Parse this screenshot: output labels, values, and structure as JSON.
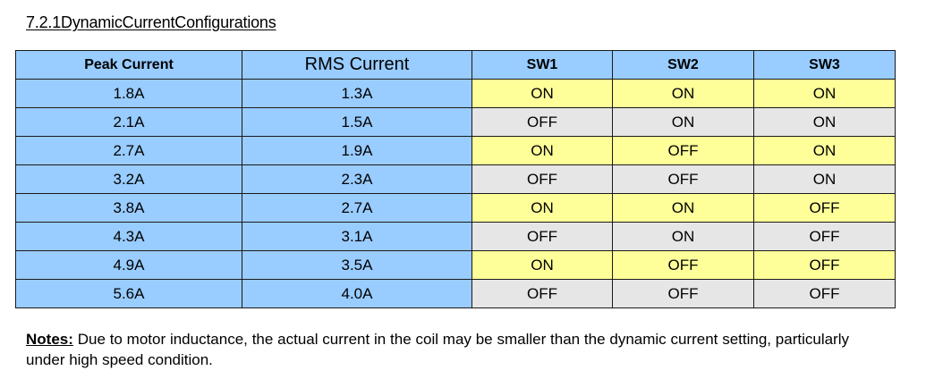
{
  "heading": "7.2.1DynamicCurrentConfigurations",
  "table": {
    "headers": {
      "peak": "Peak Current",
      "rms": "RMS Current",
      "sw1": "SW1",
      "sw2": "SW2",
      "sw3": "SW3"
    },
    "rows": [
      {
        "peak": "1.8A",
        "rms": "1.3A",
        "sw1": "ON",
        "sw2": "ON",
        "sw3": "ON"
      },
      {
        "peak": "2.1A",
        "rms": "1.5A",
        "sw1": "OFF",
        "sw2": "ON",
        "sw3": "ON"
      },
      {
        "peak": "2.7A",
        "rms": "1.9A",
        "sw1": "ON",
        "sw2": "OFF",
        "sw3": "ON"
      },
      {
        "peak": "3.2A",
        "rms": "2.3A",
        "sw1": "OFF",
        "sw2": "OFF",
        "sw3": "ON"
      },
      {
        "peak": "3.8A",
        "rms": "2.7A",
        "sw1": "ON",
        "sw2": "ON",
        "sw3": "OFF"
      },
      {
        "peak": "4.3A",
        "rms": "3.1A",
        "sw1": "OFF",
        "sw2": "ON",
        "sw3": "OFF"
      },
      {
        "peak": "4.9A",
        "rms": "3.5A",
        "sw1": "ON",
        "sw2": "OFF",
        "sw3": "OFF"
      },
      {
        "peak": "5.6A",
        "rms": "4.0A",
        "sw1": "OFF",
        "sw2": "OFF",
        "sw3": "OFF"
      }
    ]
  },
  "notes": {
    "label": "Notes:",
    "text": " Due to motor inductance, the actual current in the coil may be smaller than the dynamic current setting, particularly under high speed condition."
  },
  "colors": {
    "header_blue": "#99ccff",
    "on_yellow": "#ffff99",
    "off_gray": "#e6e6e6"
  }
}
